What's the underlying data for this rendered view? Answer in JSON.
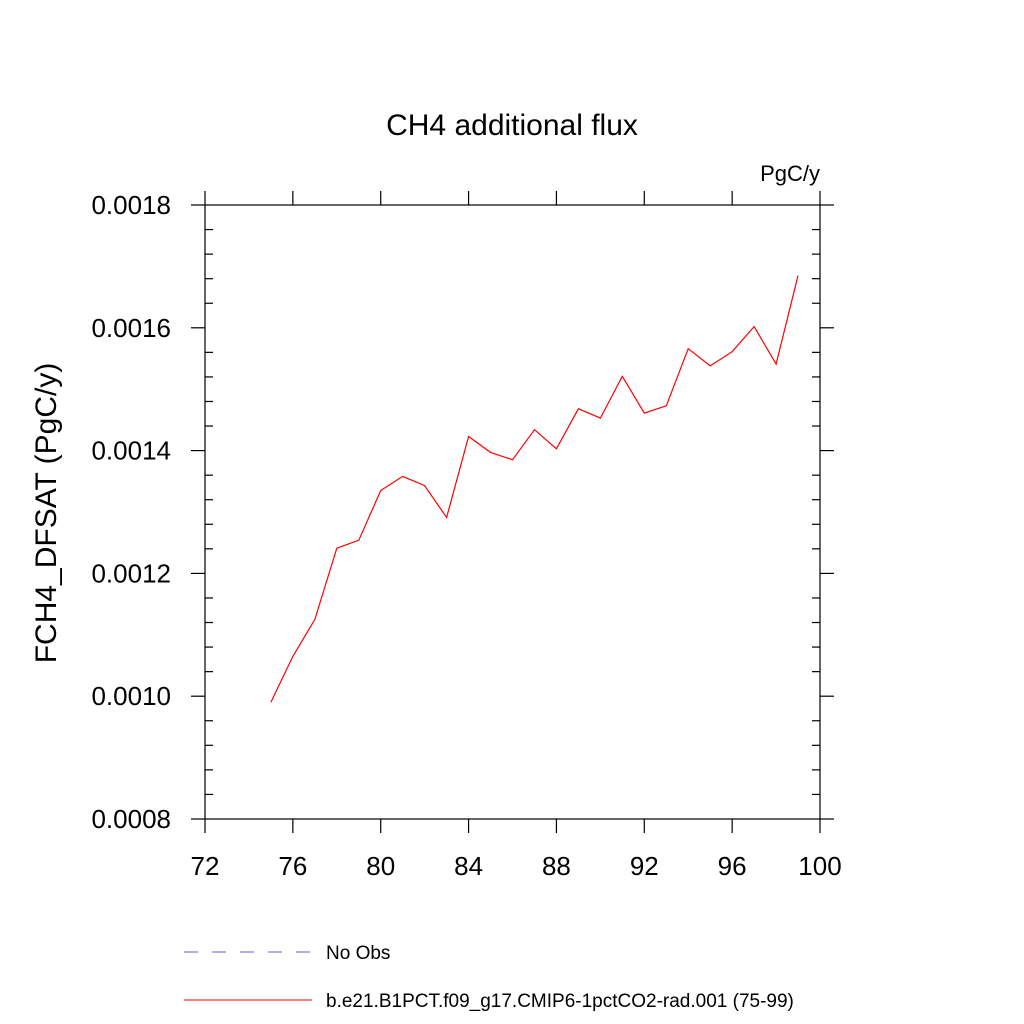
{
  "chart_data": {
    "type": "line",
    "title": "CH4 additional flux",
    "units_label": "PgC/y",
    "ylabel": "FCH4_DFSAT  (PgC/y)",
    "xlabel": "",
    "xlim": [
      72,
      100
    ],
    "ylim": [
      0.0008,
      0.0018
    ],
    "x_ticks": [
      72,
      76,
      80,
      84,
      88,
      92,
      96,
      100
    ],
    "x_tick_labels": [
      "72",
      "76",
      "80",
      "84",
      "88",
      "92",
      "96",
      "100"
    ],
    "y_ticks": [
      0.0008,
      0.001,
      0.0012,
      0.0014,
      0.0016,
      0.0018
    ],
    "y_tick_labels": [
      "0.0008",
      "0.0010",
      "0.0012",
      "0.0014",
      "0.0016",
      "0.0018"
    ],
    "grid": false,
    "legend_position": "bottom",
    "series": [
      {
        "name": "b.e21.B1PCT.f09_g17.CMIP6-1pctCO2-rad.001 (75-99)",
        "color": "#ff0000",
        "style": "solid",
        "x": [
          75,
          76,
          77,
          78,
          79,
          80,
          81,
          82,
          83,
          84,
          85,
          86,
          87,
          88,
          89,
          90,
          91,
          92,
          93,
          94,
          95,
          96,
          97,
          98,
          99
        ],
        "y": [
          0.00099,
          0.001065,
          0.001125,
          0.001241,
          0.001254,
          0.001335,
          0.001358,
          0.001343,
          0.001291,
          0.001423,
          0.001397,
          0.001385,
          0.001434,
          0.001403,
          0.001468,
          0.001453,
          0.001521,
          0.001461,
          0.001473,
          0.001566,
          0.001538,
          0.001561,
          0.001602,
          0.001541,
          0.001685
        ]
      }
    ],
    "legend": [
      {
        "label": "No Obs",
        "color": "#6a5acd",
        "style": "dashed"
      },
      {
        "label": "b.e21.B1PCT.f09_g17.CMIP6-1pctCO2-rad.001 (75-99)",
        "color": "#ff0000",
        "style": "solid"
      }
    ]
  }
}
